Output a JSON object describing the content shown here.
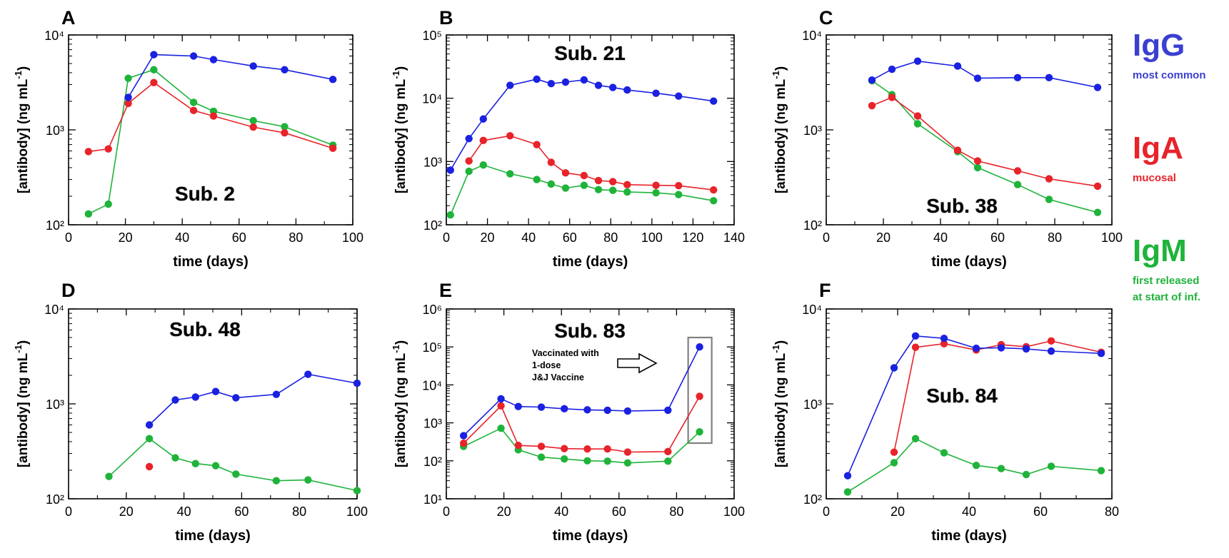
{
  "figure": {
    "legend": [
      {
        "key": "IgG",
        "label": "IgG",
        "desc": [
          "most common"
        ],
        "color": "#3b3fd0"
      },
      {
        "key": "IgA",
        "label": "IgA",
        "desc": [
          "mucosal"
        ],
        "color": "#e8232a"
      },
      {
        "key": "IgM",
        "label": "IgM",
        "desc": [
          "first released",
          "at start of inf."
        ],
        "color": "#1fb33a"
      }
    ]
  },
  "chart_data": [
    {
      "panel": "A",
      "type": "line",
      "title": "Sub. 2",
      "xlabel": "time (days)",
      "ylabel": "[antibody] (ng mL-1)",
      "xlim": [
        0,
        100
      ],
      "xticks": [
        0,
        20,
        40,
        60,
        80,
        100
      ],
      "yscale": "log",
      "ylim_exp": [
        2,
        4
      ],
      "series": [
        {
          "key": "IgG",
          "color": "#1a21e0",
          "x": [
            21,
            30,
            44,
            51,
            65,
            76,
            93
          ],
          "y": [
            2200,
            6200,
            6000,
            5500,
            4700,
            4300,
            3400
          ]
        },
        {
          "key": "IgA",
          "color": "#e8232a",
          "x": [
            7,
            14,
            21,
            30,
            44,
            51,
            65,
            76,
            93
          ],
          "y": [
            590,
            630,
            1900,
            3150,
            1600,
            1400,
            1070,
            930,
            640
          ]
        },
        {
          "key": "IgM",
          "color": "#1fb33a",
          "x": [
            7,
            14,
            21,
            30,
            44,
            51,
            65,
            76,
            93
          ],
          "y": [
            130,
            165,
            3500,
            4300,
            1950,
            1570,
            1250,
            1080,
            690
          ]
        }
      ]
    },
    {
      "panel": "B",
      "type": "line",
      "title": "Sub. 21",
      "xlabel": "time (days)",
      "ylabel": "[antibody] (ng mL-1)",
      "xlim": [
        0,
        140
      ],
      "xticks": [
        0,
        20,
        40,
        60,
        80,
        100,
        120,
        140
      ],
      "yscale": "log",
      "ylim_exp": [
        2,
        5
      ],
      "series": [
        {
          "key": "IgG",
          "color": "#1a21e0",
          "x": [
            2,
            11,
            18,
            31,
            44,
            51,
            58,
            67,
            74,
            81,
            88,
            102,
            113,
            130
          ],
          "y": [
            730,
            2300,
            4700,
            16000,
            20000,
            17000,
            18000,
            19500,
            16000,
            14800,
            13500,
            12000,
            10800,
            9000
          ]
        },
        {
          "key": "IgA",
          "color": "#e8232a",
          "x": [
            11,
            18,
            31,
            44,
            51,
            58,
            67,
            74,
            81,
            88,
            102,
            113,
            130
          ],
          "y": [
            1020,
            2150,
            2550,
            1850,
            970,
            660,
            600,
            500,
            480,
            430,
            420,
            415,
            355
          ]
        },
        {
          "key": "IgM",
          "color": "#1fb33a",
          "x": [
            2,
            11,
            18,
            31,
            44,
            51,
            58,
            67,
            74,
            81,
            88,
            102,
            113,
            130
          ],
          "y": [
            143,
            700,
            880,
            640,
            520,
            440,
            380,
            420,
            360,
            350,
            330,
            320,
            300,
            240
          ]
        }
      ]
    },
    {
      "panel": "C",
      "type": "line",
      "title": "Sub. 38",
      "xlabel": "time (days)",
      "ylabel": "[antibody] (ng mL-1)",
      "xlim": [
        0,
        100
      ],
      "xticks": [
        0,
        20,
        40,
        60,
        80,
        100
      ],
      "yscale": "log",
      "ylim_exp": [
        2,
        4
      ],
      "series": [
        {
          "key": "IgG",
          "color": "#1a21e0",
          "x": [
            16,
            23,
            32,
            46,
            53,
            67,
            78,
            95
          ],
          "y": [
            3350,
            4350,
            5300,
            4700,
            3500,
            3550,
            3550,
            2800
          ]
        },
        {
          "key": "IgA",
          "color": "#e8232a",
          "x": [
            16,
            23,
            32,
            46,
            53,
            67,
            78,
            95
          ],
          "y": [
            1800,
            2200,
            1400,
            610,
            470,
            370,
            305,
            255
          ]
        },
        {
          "key": "IgM",
          "color": "#1fb33a",
          "x": [
            16,
            23,
            32,
            46,
            53,
            67,
            78,
            95
          ],
          "y": [
            3300,
            2350,
            1160,
            590,
            400,
            265,
            185,
            135
          ]
        }
      ]
    },
    {
      "panel": "D",
      "type": "line",
      "title": "Sub. 48",
      "xlabel": "time (days)",
      "ylabel": "[antibody] (ng mL-1)",
      "xlim": [
        0,
        100
      ],
      "xticks": [
        0,
        20,
        40,
        60,
        80,
        100
      ],
      "yscale": "log",
      "ylim_exp": [
        2,
        4
      ],
      "series": [
        {
          "key": "IgG",
          "color": "#1a21e0",
          "x": [
            28,
            37,
            44,
            51,
            58,
            72,
            83,
            100
          ],
          "y": [
            600,
            1100,
            1180,
            1350,
            1160,
            1260,
            2050,
            1650
          ]
        },
        {
          "key": "IgA",
          "color": "#e8232a",
          "x": [
            28
          ],
          "y": [
            218
          ]
        },
        {
          "key": "IgM",
          "color": "#1fb33a",
          "x": [
            14,
            28,
            37,
            44,
            51,
            58,
            72,
            83,
            100
          ],
          "y": [
            172,
            430,
            270,
            235,
            223,
            182,
            155,
            158,
            122
          ]
        }
      ]
    },
    {
      "panel": "E",
      "type": "line",
      "title": "Sub. 83",
      "xlabel": "time (days)",
      "ylabel": "[antibody] (ng mL-1)",
      "xlim": [
        0,
        100
      ],
      "xticks": [
        0,
        20,
        40,
        60,
        80,
        100
      ],
      "yscale": "log",
      "ylim_exp": [
        1,
        6
      ],
      "annotation": {
        "lines": [
          "Vaccinated with",
          "1-dose",
          "J&J Vaccine"
        ]
      },
      "series": [
        {
          "key": "IgG",
          "color": "#1a21e0",
          "x": [
            6,
            19,
            25,
            33,
            41,
            49,
            56,
            63,
            77,
            88
          ],
          "y": [
            460,
            4300,
            2700,
            2600,
            2350,
            2200,
            2150,
            2050,
            2150,
            100000
          ]
        },
        {
          "key": "IgA",
          "color": "#e8232a",
          "x": [
            6,
            19,
            25,
            33,
            41,
            49,
            56,
            63,
            77,
            88
          ],
          "y": [
            290,
            2800,
            255,
            240,
            210,
            205,
            205,
            170,
            175,
            5000
          ]
        },
        {
          "key": "IgM",
          "color": "#1fb33a",
          "x": [
            6,
            19,
            25,
            33,
            41,
            49,
            56,
            63,
            77,
            88
          ],
          "y": [
            240,
            720,
            195,
            125,
            112,
            100,
            98,
            88,
            98,
            580
          ]
        }
      ]
    },
    {
      "panel": "F",
      "type": "line",
      "title": "Sub. 84",
      "xlabel": "time (days)",
      "ylabel": "[antibody] (ng mL-1)",
      "xlim": [
        0,
        80
      ],
      "xticks": [
        0,
        20,
        40,
        60,
        80
      ],
      "yscale": "log",
      "ylim_exp": [
        2,
        4
      ],
      "series": [
        {
          "key": "IgG",
          "color": "#1a21e0",
          "x": [
            6,
            19,
            25,
            33,
            42,
            49,
            56,
            63,
            77
          ],
          "y": [
            175,
            2400,
            5200,
            4900,
            3850,
            3900,
            3800,
            3600,
            3400
          ]
        },
        {
          "key": "IgA",
          "color": "#e8232a",
          "x": [
            19,
            25,
            33,
            42,
            49,
            56,
            63,
            77
          ],
          "y": [
            310,
            3950,
            4300,
            3700,
            4200,
            4000,
            4600,
            3500
          ]
        },
        {
          "key": "IgM",
          "color": "#1fb33a",
          "x": [
            6,
            19,
            25,
            33,
            42,
            49,
            56,
            63,
            77
          ],
          "y": [
            118,
            240,
            430,
            305,
            225,
            208,
            180,
            220,
            198
          ]
        }
      ]
    }
  ]
}
